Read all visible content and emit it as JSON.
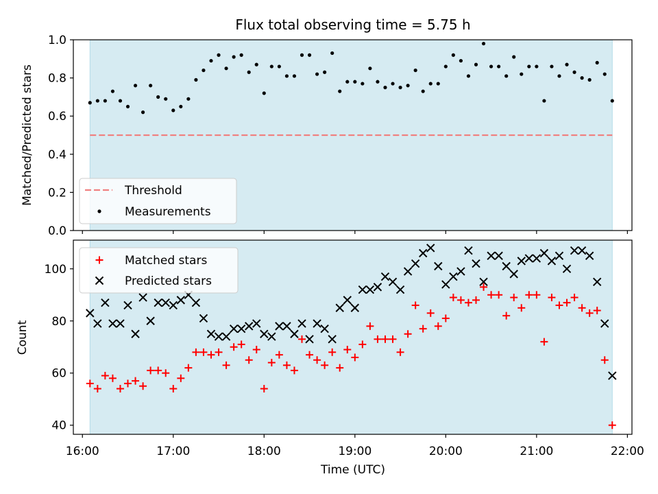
{
  "title": "Flux total observing time = 5.75 h",
  "colors": {
    "span": "#add8e6",
    "threshold": "#f08080",
    "matched": "#ff0000",
    "predicted": "#000000",
    "measurement": "#000000"
  },
  "chart_data": [
    {
      "type": "scatter",
      "ylabel": "Matched/Predicted stars",
      "xlim": [
        "15:54",
        "22:03"
      ],
      "ylim": [
        0.0,
        1.0
      ],
      "yticks": [
        "0.0",
        "0.2",
        "0.4",
        "0.6",
        "0.8",
        "1.0"
      ],
      "shaded_span": [
        "16:05",
        "21:50"
      ],
      "threshold": 0.5,
      "legend": {
        "position": "lower-left",
        "threshold_label": "Threshold",
        "measurements_label": "Measurements"
      },
      "series": [
        {
          "name": "Measurements",
          "x": [
            "16:05",
            "16:10",
            "16:15",
            "16:20",
            "16:25",
            "16:30",
            "16:35",
            "16:40",
            "16:45",
            "16:50",
            "16:55",
            "17:00",
            "17:05",
            "17:10",
            "17:15",
            "17:20",
            "17:25",
            "17:30",
            "17:35",
            "17:40",
            "17:45",
            "17:50",
            "17:55",
            "18:00",
            "18:05",
            "18:10",
            "18:15",
            "18:20",
            "18:25",
            "18:30",
            "18:35",
            "18:40",
            "18:45",
            "18:50",
            "18:55",
            "19:00",
            "19:05",
            "19:10",
            "19:15",
            "19:20",
            "19:25",
            "19:30",
            "19:35",
            "19:40",
            "19:45",
            "19:50",
            "19:55",
            "20:00",
            "20:05",
            "20:10",
            "20:15",
            "20:20",
            "20:25",
            "20:30",
            "20:35",
            "20:40",
            "20:45",
            "20:50",
            "20:55",
            "21:00",
            "21:05",
            "21:10",
            "21:15",
            "21:20",
            "21:25",
            "21:30",
            "21:35",
            "21:40",
            "21:45",
            "21:50"
          ],
          "y": [
            0.67,
            0.68,
            0.68,
            0.73,
            0.68,
            0.65,
            0.76,
            0.62,
            0.76,
            0.7,
            0.69,
            0.63,
            0.65,
            0.69,
            0.79,
            0.84,
            0.89,
            0.92,
            0.85,
            0.91,
            0.92,
            0.83,
            0.87,
            0.72,
            0.86,
            0.86,
            0.81,
            0.81,
            0.92,
            0.92,
            0.82,
            0.83,
            0.93,
            0.73,
            0.78,
            0.78,
            0.77,
            0.85,
            0.78,
            0.75,
            0.77,
            0.75,
            0.76,
            0.84,
            0.73,
            0.77,
            0.77,
            0.86,
            0.92,
            0.89,
            0.81,
            0.87,
            0.98,
            0.86,
            0.86,
            0.81,
            0.91,
            0.82,
            0.86,
            0.86,
            0.68,
            0.86,
            0.81,
            0.87,
            0.83,
            0.8,
            0.79,
            0.88,
            0.82,
            0.68
          ]
        }
      ]
    },
    {
      "type": "scatter",
      "ylabel": "Count",
      "xlabel": "Time (UTC)",
      "xlim": [
        "15:54",
        "22:03"
      ],
      "ylim": [
        36.5,
        111
      ],
      "yticks": [
        "40",
        "60",
        "80",
        "100"
      ],
      "xticks": [
        "16:00",
        "17:00",
        "18:00",
        "19:00",
        "20:00",
        "21:00",
        "22:00"
      ],
      "shaded_span": [
        "16:05",
        "21:50"
      ],
      "legend": {
        "position": "upper-left"
      },
      "series": [
        {
          "name": "Matched stars",
          "marker": "plus",
          "x": [
            "16:05",
            "16:10",
            "16:15",
            "16:20",
            "16:25",
            "16:30",
            "16:35",
            "16:40",
            "16:45",
            "16:50",
            "16:55",
            "17:00",
            "17:05",
            "17:10",
            "17:15",
            "17:20",
            "17:25",
            "17:30",
            "17:35",
            "17:40",
            "17:45",
            "17:50",
            "17:55",
            "18:00",
            "18:05",
            "18:10",
            "18:15",
            "18:20",
            "18:25",
            "18:30",
            "18:35",
            "18:40",
            "18:45",
            "18:50",
            "18:55",
            "19:00",
            "19:05",
            "19:10",
            "19:15",
            "19:20",
            "19:25",
            "19:30",
            "19:35",
            "19:40",
            "19:45",
            "19:50",
            "19:55",
            "20:00",
            "20:05",
            "20:10",
            "20:15",
            "20:20",
            "20:25",
            "20:30",
            "20:35",
            "20:40",
            "20:45",
            "20:50",
            "20:55",
            "21:00",
            "21:05",
            "21:10",
            "21:15",
            "21:20",
            "21:25",
            "21:30",
            "21:35",
            "21:40",
            "21:45",
            "21:50"
          ],
          "y": [
            56,
            54,
            59,
            58,
            54,
            56,
            57,
            55,
            61,
            61,
            60,
            54,
            58,
            62,
            68,
            68,
            67,
            68,
            63,
            70,
            71,
            65,
            69,
            54,
            64,
            67,
            63,
            61,
            73,
            67,
            65,
            63,
            68,
            62,
            69,
            66,
            71,
            78,
            73,
            73,
            73,
            68,
            75,
            86,
            77,
            83,
            78,
            81,
            89,
            88,
            87,
            88,
            93,
            90,
            90,
            82,
            89,
            85,
            90,
            90,
            72,
            89,
            86,
            87,
            89,
            85,
            83,
            84,
            65,
            40
          ]
        },
        {
          "name": "Predicted stars",
          "marker": "x",
          "x": [
            "16:05",
            "16:10",
            "16:15",
            "16:20",
            "16:25",
            "16:30",
            "16:35",
            "16:40",
            "16:45",
            "16:50",
            "16:55",
            "17:00",
            "17:05",
            "17:10",
            "17:15",
            "17:20",
            "17:25",
            "17:30",
            "17:35",
            "17:40",
            "17:45",
            "17:50",
            "17:55",
            "18:00",
            "18:05",
            "18:10",
            "18:15",
            "18:20",
            "18:25",
            "18:30",
            "18:35",
            "18:40",
            "18:45",
            "18:50",
            "18:55",
            "19:00",
            "19:05",
            "19:10",
            "19:15",
            "19:20",
            "19:25",
            "19:30",
            "19:35",
            "19:40",
            "19:45",
            "19:50",
            "19:55",
            "20:00",
            "20:05",
            "20:10",
            "20:15",
            "20:20",
            "20:25",
            "20:30",
            "20:35",
            "20:40",
            "20:45",
            "20:50",
            "20:55",
            "21:00",
            "21:05",
            "21:10",
            "21:15",
            "21:20",
            "21:25",
            "21:30",
            "21:35",
            "21:40",
            "21:45",
            "21:50"
          ],
          "y": [
            83,
            79,
            87,
            79,
            79,
            86,
            75,
            89,
            80,
            87,
            87,
            86,
            88,
            90,
            87,
            81,
            75,
            74,
            74,
            77,
            77,
            78,
            79,
            75,
            74,
            78,
            78,
            75,
            79,
            73,
            79,
            77,
            73,
            85,
            88,
            85,
            92,
            92,
            93,
            97,
            95,
            92,
            99,
            102,
            106,
            108,
            101,
            94,
            97,
            99,
            107,
            102,
            95,
            105,
            105,
            101,
            98,
            103,
            104,
            104,
            106,
            103,
            105,
            100,
            107,
            107,
            105,
            95,
            79,
            59
          ]
        }
      ]
    }
  ]
}
